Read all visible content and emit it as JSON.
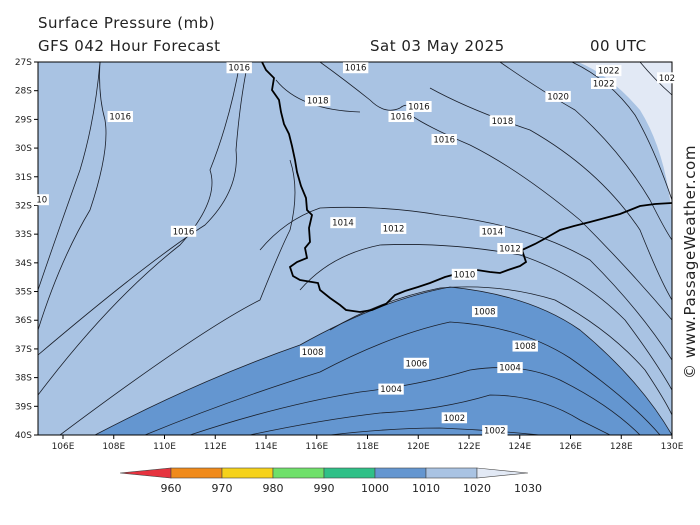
{
  "header": {
    "title": "Surface Pressure (mb)",
    "subtitle": "GFS 042 Hour Forecast",
    "date": "Sat 03 May 2025",
    "time": "00 UTC"
  },
  "credit": "© www.PassageWeather.com",
  "axes": {
    "latitudes": [
      "27S",
      "28S",
      "29S",
      "30S",
      "31S",
      "32S",
      "33S",
      "34S",
      "35S",
      "36S",
      "37S",
      "38S",
      "39S",
      "40S"
    ],
    "longitudes": [
      "106E",
      "108E",
      "110E",
      "112E",
      "114E",
      "116E",
      "118E",
      "120E",
      "122E",
      "124E",
      "126E",
      "128E",
      "130E"
    ]
  },
  "isobar_labels": [
    {
      "text": "1016",
      "lon": 108.2,
      "lat": 28.9
    },
    {
      "text": "1016",
      "lon": 112.9,
      "lat": 27.2
    },
    {
      "text": "1016",
      "lon": 117.5,
      "lat": 27.2
    },
    {
      "text": "1018",
      "lon": 116.0,
      "lat": 28.35
    },
    {
      "text": "1016",
      "lon": 119.3,
      "lat": 28.9
    },
    {
      "text": "1016",
      "lon": 120.0,
      "lat": 28.55
    },
    {
      "text": "1016",
      "lon": 121.0,
      "lat": 29.7
    },
    {
      "text": "1018",
      "lon": 123.3,
      "lat": 29.05
    },
    {
      "text": "1020",
      "lon": 125.5,
      "lat": 28.2
    },
    {
      "text": "1022",
      "lon": 127.5,
      "lat": 27.3
    },
    {
      "text": "1022",
      "lon": 127.3,
      "lat": 27.75
    },
    {
      "text": "102",
      "lon": 129.8,
      "lat": 27.55
    },
    {
      "text": "1014",
      "lon": 117.0,
      "lat": 32.6
    },
    {
      "text": "1014",
      "lon": 122.9,
      "lat": 32.9
    },
    {
      "text": "1012",
      "lon": 119.0,
      "lat": 32.8
    },
    {
      "text": "1012",
      "lon": 123.6,
      "lat": 33.5
    },
    {
      "text": "1010",
      "lon": 121.8,
      "lat": 34.4
    },
    {
      "text": "1016",
      "lon": 110.7,
      "lat": 32.9
    },
    {
      "text": "1008",
      "lon": 122.6,
      "lat": 35.7
    },
    {
      "text": "1008",
      "lon": 115.8,
      "lat": 37.1
    },
    {
      "text": "1008",
      "lon": 124.2,
      "lat": 36.9
    },
    {
      "text": "1006",
      "lon": 119.9,
      "lat": 37.5
    },
    {
      "text": "1004",
      "lon": 118.9,
      "lat": 38.4
    },
    {
      "text": "1004",
      "lon": 123.6,
      "lat": 37.65
    },
    {
      "text": "1002",
      "lon": 121.4,
      "lat": 39.4
    },
    {
      "text": "1002",
      "lon": 123.0,
      "lat": 39.85
    },
    {
      "text": "10",
      "lon": 105.1,
      "lat": 31.8
    }
  ],
  "legend": {
    "units": "mb",
    "levels": [
      "960",
      "970",
      "980",
      "990",
      "1000",
      "1010",
      "1020",
      "1030"
    ],
    "colors": [
      "#e6333f",
      "#f08a1a",
      "#f5d21b",
      "#6fe06a",
      "#2fc087",
      "#6496d0",
      "#a9c3e3",
      "#e2e9f5"
    ]
  },
  "colors": {
    "fill_1020_up": "#e2e9f5",
    "fill_1010_1020": "#a9c3e3",
    "fill_1000_1010": "#6496d0"
  }
}
